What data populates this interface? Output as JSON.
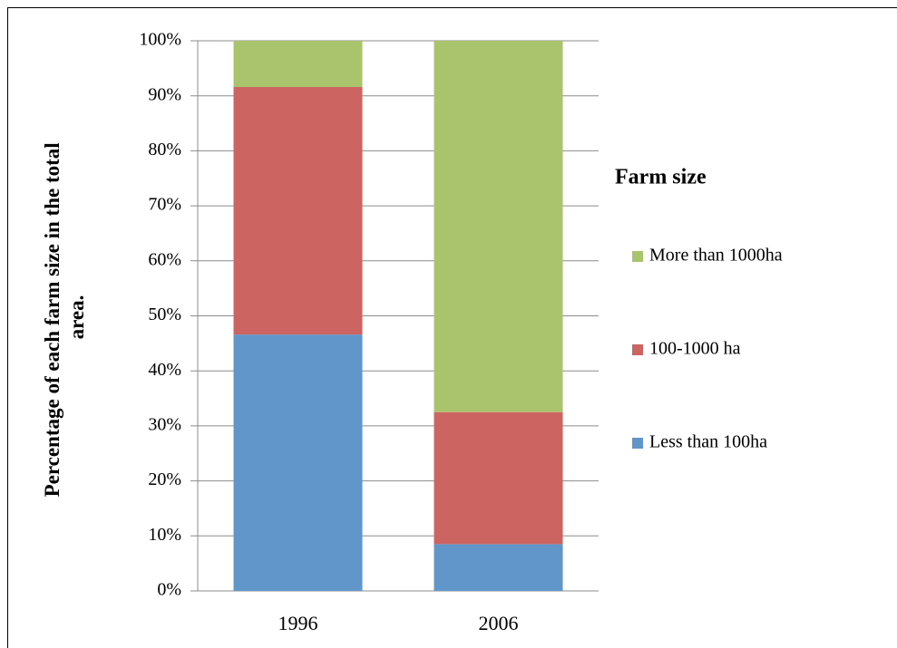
{
  "chart_data": {
    "type": "stacked_bar",
    "ylabel": [
      "Percentage of each farm size in the total",
      "area."
    ],
    "categories": [
      "1996",
      "2006"
    ],
    "series": [
      {
        "name": "Less than 100ha",
        "color": "#6096c9",
        "values": [
          46.6,
          8.5
        ]
      },
      {
        "name": "100-1000 ha",
        "color": "#cc6561",
        "values": [
          45,
          24
        ]
      },
      {
        "name": "More than 1000ha",
        "color": "#a9c46c",
        "values": [
          8.4,
          67.5
        ]
      }
    ],
    "legend_title": "Farm size",
    "legend_position": "right",
    "ylim": [
      0,
      100
    ],
    "yticks": [
      {
        "value": 0,
        "label": "0%"
      },
      {
        "value": 10,
        "label": "10%"
      },
      {
        "value": 20,
        "label": "20%"
      },
      {
        "value": 30,
        "label": "30%"
      },
      {
        "value": 40,
        "label": "40%"
      },
      {
        "value": 50,
        "label": "50%"
      },
      {
        "value": 60,
        "label": "60%"
      },
      {
        "value": 70,
        "label": "70%"
      },
      {
        "value": 80,
        "label": "80%"
      },
      {
        "value": 90,
        "label": "90%"
      },
      {
        "value": 100,
        "label": "100%"
      }
    ],
    "grid": true
  }
}
